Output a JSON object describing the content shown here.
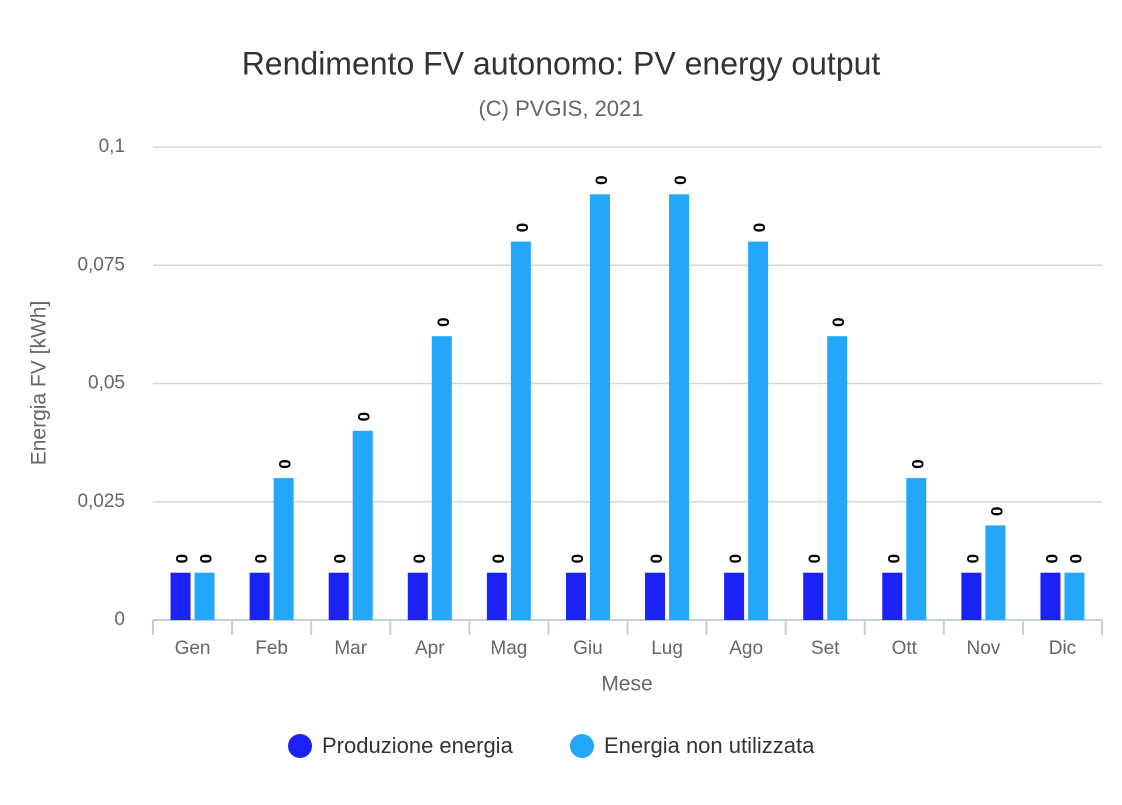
{
  "chart_data": {
    "type": "bar",
    "title": "Rendimento FV autonomo: PV energy output",
    "subtitle": "(C) PVGIS, 2021",
    "y_label": "Energia FV [kWh]",
    "x_label": "Mese",
    "categories": [
      "Gen",
      "Feb",
      "Mar",
      "Apr",
      "Mag",
      "Giu",
      "Lug",
      "Ago",
      "Set",
      "Ott",
      "Nov",
      "Dic"
    ],
    "series": [
      {
        "name": "Produzione energia",
        "color": "#1a22f5",
        "values": [
          0.01,
          0.01,
          0.01,
          0.01,
          0.01,
          0.01,
          0.01,
          0.01,
          0.01,
          0.01,
          0.01,
          0.01
        ],
        "value_labels": [
          "0",
          "0",
          "0",
          "0",
          "0",
          "0",
          "0",
          "0",
          "0",
          "0",
          "0",
          "0"
        ]
      },
      {
        "name": "Energia non utilizzata",
        "color": "#22a7fb",
        "values": [
          0.01,
          0.03,
          0.04,
          0.06,
          0.08,
          0.09,
          0.09,
          0.08,
          0.06,
          0.03,
          0.02,
          0.01
        ],
        "value_labels": [
          "0",
          "0",
          "0",
          "0",
          "0",
          "0",
          "0",
          "0",
          "0",
          "0",
          "0",
          "0"
        ]
      }
    ],
    "ylim": [
      0,
      0.1
    ],
    "yticks": [
      0,
      {
        "value": 0.025,
        "label": "0,025"
      },
      {
        "value": 0.05,
        "label": "0,05"
      },
      {
        "value": 0.075,
        "label": "0,075"
      },
      {
        "value": 0.1,
        "label": "0,1"
      }
    ],
    "grid": true,
    "legend": "bottom"
  }
}
